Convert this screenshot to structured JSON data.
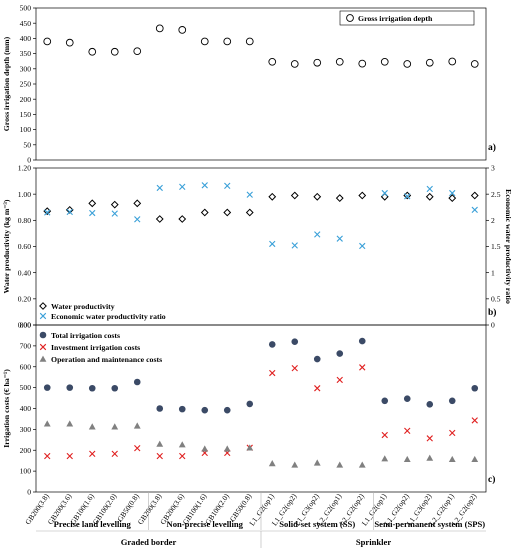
{
  "chart_data": [
    {
      "type": "scatter",
      "panel_label": "a)",
      "ylabel": "Gross irrigation depth (mm)",
      "ylim": [
        0,
        500
      ],
      "yticks": [
        "0",
        "50",
        "100",
        "150",
        "200",
        "250",
        "300",
        "350",
        "400",
        "450",
        "500"
      ],
      "legend_placement": "top-right",
      "series": [
        {
          "name": "Gross irrigation depth",
          "marker": "open-circle",
          "values": [
            390,
            386,
            356,
            356,
            358,
            433,
            428,
            390,
            390,
            390,
            323,
            316,
            320,
            323,
            317,
            323,
            316,
            320,
            324,
            316
          ]
        }
      ]
    },
    {
      "type": "scatter",
      "panel_label": "b)",
      "ylabel": "Water productivity (kg m⁻³)",
      "y2label": "Economic water productivity ratio",
      "ylim": [
        0,
        1.2
      ],
      "y2lim": [
        0,
        3
      ],
      "yticks": [
        "0.00",
        "0.20",
        "0.40",
        "0.60",
        "0.80",
        "1.00",
        "1.20"
      ],
      "y2ticks": [
        "0",
        "0.5",
        "1",
        "1.5",
        "2",
        "2.5",
        "3"
      ],
      "legend_placement": "bottom-left",
      "series": [
        {
          "name": "Water productivity",
          "marker": "diamond",
          "axis": "left",
          "values": [
            0.87,
            0.88,
            0.93,
            0.92,
            0.93,
            0.81,
            0.81,
            0.86,
            0.86,
            0.86,
            0.98,
            0.99,
            0.98,
            0.97,
            0.99,
            0.98,
            0.99,
            0.98,
            0.97,
            0.99
          ]
        },
        {
          "name": "Economic water productivity ratio",
          "marker": "x",
          "axis": "right",
          "color": "#3aa0d8",
          "values": [
            2.15,
            2.16,
            2.14,
            2.13,
            2.02,
            2.62,
            2.64,
            2.67,
            2.66,
            2.49,
            1.55,
            1.52,
            1.73,
            1.65,
            1.51,
            2.52,
            2.46,
            2.6,
            2.52,
            2.2
          ]
        }
      ]
    },
    {
      "type": "scatter",
      "panel_label": "c)",
      "ylabel": "Irrigation costs (€ ha⁻¹)",
      "ylim": [
        0,
        800
      ],
      "yticks": [
        "0",
        "100",
        "200",
        "300",
        "400",
        "500",
        "600",
        "700",
        "800"
      ],
      "legend_placement": "top-left",
      "series": [
        {
          "name": "Total irrigation costs",
          "marker": "filled-circle",
          "color": "#3b4a66",
          "values": [
            500,
            500,
            497,
            497,
            527,
            400,
            397,
            392,
            392,
            422,
            707,
            720,
            637,
            663,
            723,
            437,
            447,
            420,
            437,
            497
          ]
        },
        {
          "name": "Investment irrigation costs",
          "marker": "x",
          "color": "#e02020",
          "values": [
            172,
            172,
            183,
            183,
            210,
            172,
            172,
            187,
            187,
            212,
            570,
            593,
            497,
            537,
            597,
            273,
            293,
            257,
            283,
            343
          ]
        },
        {
          "name": "Operation and maintenance costs",
          "marker": "triangle",
          "color": "#808080",
          "values": [
            327,
            327,
            313,
            313,
            317,
            230,
            227,
            207,
            207,
            212,
            137,
            130,
            140,
            130,
            130,
            160,
            157,
            163,
            157,
            157
          ]
        }
      ]
    }
  ],
  "categories": [
    "GB200(3.8)",
    "GB200(3.6)",
    "GB100(1.6)",
    "GB100(2.0)",
    "GB50(0.8)",
    "GB200(3.8)",
    "GB200(3.6)",
    "GB100(1.6)",
    "GB100(2.0)",
    "GB50(0.8)",
    "L1_G2(op1)",
    "L1_G2(op2)",
    "L1_G3(op2)",
    "L2_G2(op1)",
    "L2_G2(op2)",
    "L1_G2(op1)",
    "L1_G2(op2)",
    "L1_G3(op2)",
    "L2_G2(op1)",
    "L2_G2(op2)"
  ],
  "groups": [
    {
      "label": "Precise land levelling",
      "start": 0,
      "end": 4
    },
    {
      "label": "Non-precise levelling",
      "start": 5,
      "end": 9
    },
    {
      "label": "Solid-set system (SS)",
      "start": 10,
      "end": 14
    },
    {
      "label": "Semi-permanent system (SPS)",
      "start": 15,
      "end": 19
    }
  ],
  "supergroups": [
    {
      "label": "Graded border",
      "start": 0,
      "end": 9
    },
    {
      "label": "Sprinkler",
      "start": 10,
      "end": 19
    }
  ]
}
